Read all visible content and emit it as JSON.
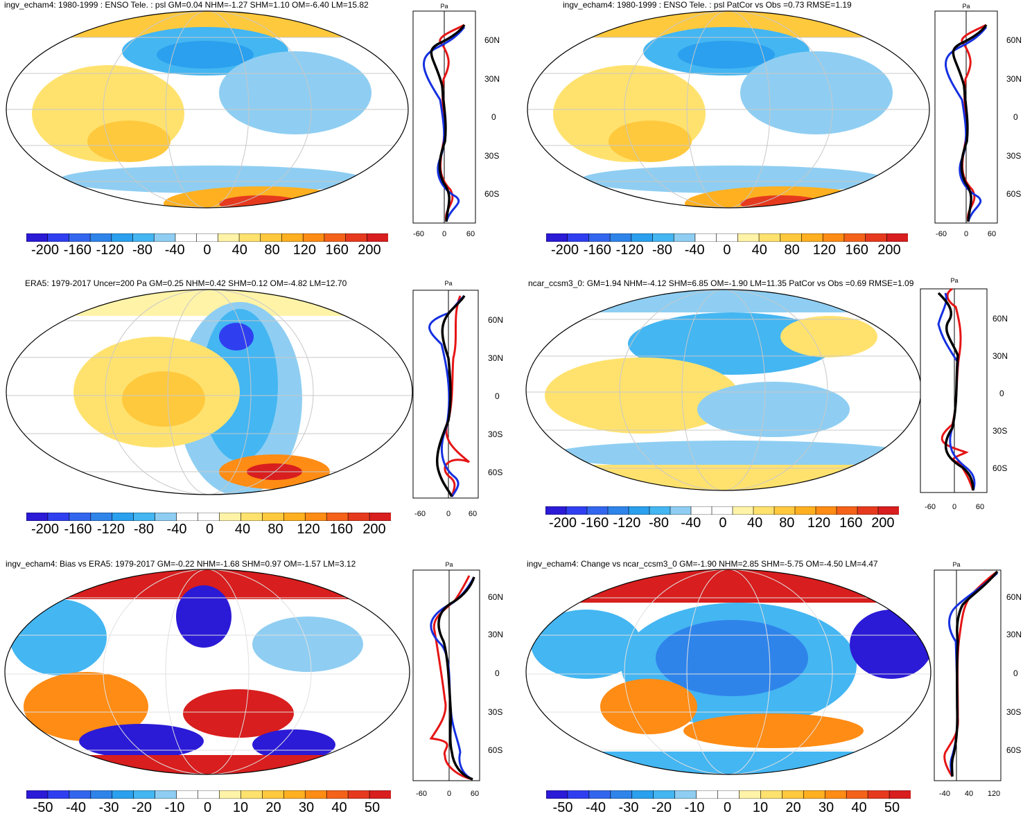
{
  "panels": [
    {
      "title": "ingv_echam4: 1980-1999 : ENSO Tele. : psl GM=0.04 NHM=-1.27 SHM=1.10 OM=-6.40 LM=15.82",
      "scale": "small",
      "zonal_ticks": [
        "-60",
        "0",
        "60"
      ]
    },
    {
      "title": "ingv_echam4: 1980-1999 : ENSO Tele. : psl PatCor vs Obs =0.73 RMSE=1.19",
      "scale": "small",
      "zonal_ticks": [
        "-60",
        "0",
        "60"
      ]
    },
    {
      "title": "ERA5: 1979-2017 Uncer=200 Pa GM=0.25 NHM=0.42 SHM=0.12 OM=-4.82 LM=12.70",
      "scale": "small",
      "zonal_ticks": [
        "-60",
        "0",
        "60"
      ]
    },
    {
      "title": "ncar_ccsm3_0: GM=1.94 NHM=-4.12 SHM=6.85 OM=-1.90 LM=11.35 PatCor vs Obs =0.69 RMSE=1.09",
      "scale": "small",
      "zonal_ticks": [
        "-60",
        "0",
        "60"
      ]
    },
    {
      "title": "ingv_echam4: Bias vs ERA5: 1979-2017 GM=-0.22 NHM=-1.68 SHM=0.97 OM=-1.57 LM=3.12",
      "scale": "bias",
      "zonal_ticks": [
        "-60",
        "0",
        "60"
      ]
    },
    {
      "title": "ingv_echam4: Change vs ncar_ccsm3_0 GM=-1.90 NHM=2.85 SHM=-5.75 OM=-4.50 LM=4.47",
      "scale": "bias",
      "zonal_ticks": [
        "-40",
        "40",
        "120"
      ]
    }
  ],
  "colorbar_labels_large": [
    "-200",
    "-160",
    "-120",
    "-80",
    "-40",
    "0",
    "40",
    "80",
    "120",
    "160",
    "200"
  ],
  "colorbar_labels_small": [
    "-50",
    "-40",
    "-30",
    "-20",
    "-10",
    "0",
    "10",
    "20",
    "30",
    "40",
    "50"
  ],
  "latitude_labels": [
    "60N",
    "30N",
    "0",
    "30S",
    "60S"
  ],
  "unit_label": "Pa",
  "colors": {
    "scale": [
      "#2b1ad6",
      "#2f3ff0",
      "#3366ee",
      "#2f84ea",
      "#2aa0ee",
      "#44b6f2",
      "#8fcef2",
      "#ffffff",
      "#ffffff",
      "#fff3a8",
      "#ffe26e",
      "#ffc93e",
      "#ffb020",
      "#ff8c14",
      "#f5621a",
      "#e63a1e",
      "#d81e1e"
    ],
    "line_model": "#e51515",
    "line_obs": "#1530e0",
    "line_mean": "#000000",
    "land_outline": "#000000",
    "graticule": "#c8c8c8"
  }
}
